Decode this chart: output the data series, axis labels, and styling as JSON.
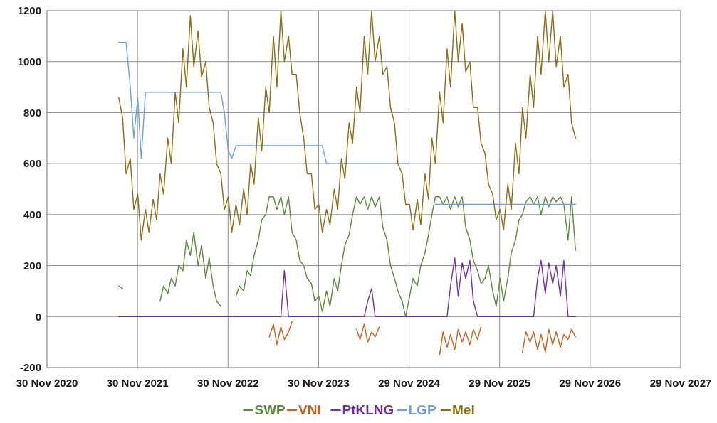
{
  "chart_data": {
    "type": "line",
    "xlim": [
      "2020-11-30",
      "2027-11-29"
    ],
    "xticks": [
      {
        "value": "2020-11-30",
        "label": "30 Nov 2020"
      },
      {
        "value": "2021-11-30",
        "label": "30 Nov 2021"
      },
      {
        "value": "2022-11-30",
        "label": "30 Nov 2022"
      },
      {
        "value": "2023-11-30",
        "label": "30 Nov 2023"
      },
      {
        "value": "2024-11-29",
        "label": "29 Nov 2024"
      },
      {
        "value": "2025-11-29",
        "label": "29 Nov 2025"
      },
      {
        "value": "2026-11-29",
        "label": "29 Nov 2026"
      },
      {
        "value": "2027-11-29",
        "label": "29 Nov 2027"
      }
    ],
    "ylim": [
      -200,
      1200
    ],
    "yticks": [
      -200,
      0,
      200,
      400,
      600,
      800,
      1000,
      1200
    ],
    "grid": true,
    "legend": "bottom",
    "line_style": "solid",
    "marker": "none",
    "x": [
      "2021-09-15",
      "2021-10-01",
      "2021-10-15",
      "2021-11-01",
      "2021-11-15",
      "2021-12-01",
      "2021-12-15",
      "2022-01-01",
      "2022-01-15",
      "2022-02-01",
      "2022-02-15",
      "2022-03-01",
      "2022-03-15",
      "2022-04-01",
      "2022-04-15",
      "2022-05-01",
      "2022-05-15",
      "2022-06-01",
      "2022-06-15",
      "2022-07-01",
      "2022-07-15",
      "2022-08-01",
      "2022-08-15",
      "2022-09-01",
      "2022-09-15",
      "2022-10-01",
      "2022-10-15",
      "2022-11-01",
      "2022-11-15",
      "2022-12-01",
      "2022-12-15",
      "2023-01-01",
      "2023-01-15",
      "2023-02-01",
      "2023-02-15",
      "2023-03-01",
      "2023-03-15",
      "2023-04-01",
      "2023-04-15",
      "2023-05-01",
      "2023-05-15",
      "2023-06-01",
      "2023-06-15",
      "2023-07-01",
      "2023-07-15",
      "2023-08-01",
      "2023-08-15",
      "2023-09-01",
      "2023-09-15",
      "2023-10-01",
      "2023-10-15",
      "2023-11-01",
      "2023-11-15",
      "2023-12-01",
      "2023-12-15",
      "2024-01-01",
      "2024-01-15",
      "2024-02-01",
      "2024-02-15",
      "2024-03-01",
      "2024-03-15",
      "2024-04-01",
      "2024-04-15",
      "2024-05-01",
      "2024-05-15",
      "2024-06-01",
      "2024-06-15",
      "2024-07-01",
      "2024-07-15",
      "2024-08-01",
      "2024-08-15",
      "2024-09-01",
      "2024-09-15",
      "2024-10-01",
      "2024-10-15",
      "2024-11-01",
      "2024-11-15",
      "2024-12-01",
      "2024-12-15",
      "2025-01-01",
      "2025-01-15",
      "2025-02-01",
      "2025-02-15",
      "2025-03-01",
      "2025-03-15",
      "2025-04-01",
      "2025-04-15",
      "2025-05-01",
      "2025-05-15",
      "2025-06-01",
      "2025-06-15",
      "2025-07-01",
      "2025-07-15",
      "2025-08-01",
      "2025-08-15",
      "2025-09-01",
      "2025-09-15",
      "2025-10-01",
      "2025-10-15",
      "2025-11-01",
      "2025-11-15",
      "2025-12-01",
      "2025-12-15",
      "2026-01-01",
      "2026-01-15",
      "2026-02-01",
      "2026-02-15",
      "2026-03-01",
      "2026-03-15",
      "2026-04-01",
      "2026-04-15",
      "2026-05-01",
      "2026-05-15",
      "2026-06-01",
      "2026-06-15",
      "2026-07-01",
      "2026-07-15",
      "2026-08-01",
      "2026-08-15",
      "2026-09-01",
      "2026-09-15",
      "2026-10-01"
    ],
    "series": [
      {
        "name": "SWP",
        "color": "#5b8a3c",
        "values": [
          120,
          110,
          null,
          null,
          null,
          null,
          null,
          null,
          null,
          null,
          null,
          60,
          120,
          90,
          150,
          120,
          200,
          180,
          300,
          240,
          330,
          200,
          280,
          150,
          230,
          120,
          60,
          40,
          null,
          null,
          null,
          80,
          120,
          100,
          180,
          160,
          240,
          300,
          380,
          400,
          470,
          470,
          420,
          470,
          400,
          470,
          330,
          300,
          220,
          200,
          150,
          130,
          60,
          80,
          20,
          100,
          40,
          150,
          100,
          200,
          280,
          320,
          400,
          470,
          440,
          470,
          420,
          470,
          430,
          470,
          350,
          300,
          200,
          150,
          100,
          60,
          0,
          80,
          150,
          120,
          200,
          250,
          320,
          400,
          470,
          470,
          440,
          470,
          420,
          470,
          430,
          470,
          350,
          300,
          220,
          180,
          130,
          150,
          200,
          100,
          40,
          150,
          60,
          150,
          250,
          300,
          380,
          400,
          450,
          470,
          440,
          470,
          400,
          470,
          430,
          470,
          450,
          470,
          440,
          300,
          470,
          260
        ]
      },
      {
        "name": "VNI",
        "color": "#c8601d",
        "values": [
          null,
          null,
          null,
          null,
          null,
          null,
          null,
          null,
          null,
          null,
          null,
          null,
          null,
          null,
          null,
          null,
          null,
          null,
          null,
          null,
          null,
          null,
          null,
          null,
          null,
          null,
          null,
          null,
          null,
          null,
          null,
          null,
          null,
          null,
          null,
          null,
          null,
          null,
          null,
          null,
          -80,
          -30,
          -110,
          -40,
          -90,
          -60,
          -20,
          null,
          null,
          null,
          null,
          null,
          null,
          null,
          null,
          null,
          null,
          null,
          null,
          null,
          null,
          null,
          null,
          -50,
          -90,
          -30,
          -100,
          -60,
          -80,
          -40,
          null,
          null,
          null,
          null,
          null,
          null,
          null,
          null,
          null,
          null,
          null,
          null,
          null,
          null,
          null,
          -150,
          -60,
          -120,
          -70,
          -130,
          -50,
          -100,
          -60,
          -110,
          -50,
          -90,
          -40,
          null,
          null,
          null,
          null,
          null,
          null,
          null,
          null,
          null,
          null,
          -140,
          -60,
          -100,
          -60,
          -130,
          -70,
          -140,
          -50,
          -110,
          -60,
          -120,
          -70,
          -90,
          -50,
          -80
        ]
      },
      {
        "name": "PtKLNG",
        "color": "#7030a0",
        "values": [
          0,
          0,
          0,
          0,
          0,
          0,
          0,
          0,
          0,
          0,
          0,
          0,
          0,
          0,
          0,
          0,
          0,
          0,
          0,
          0,
          0,
          0,
          0,
          0,
          0,
          0,
          0,
          0,
          0,
          0,
          0,
          0,
          0,
          0,
          0,
          0,
          0,
          0,
          0,
          0,
          0,
          0,
          0,
          0,
          180,
          0,
          0,
          0,
          0,
          0,
          0,
          0,
          0,
          0,
          0,
          0,
          0,
          0,
          0,
          0,
          0,
          0,
          0,
          0,
          0,
          0,
          60,
          110,
          0,
          0,
          0,
          0,
          0,
          0,
          0,
          0,
          0,
          0,
          0,
          0,
          0,
          0,
          0,
          0,
          0,
          0,
          0,
          0,
          120,
          230,
          80,
          210,
          150,
          220,
          60,
          0,
          0,
          0,
          0,
          0,
          0,
          0,
          0,
          0,
          0,
          0,
          0,
          0,
          0,
          0,
          0,
          150,
          220,
          90,
          210,
          130,
          200,
          80,
          220,
          0,
          0,
          0
        ]
      },
      {
        "name": "LGP",
        "color": "#6fa0dc",
        "values": [
          1075,
          1075,
          1075,
          900,
          700,
          860,
          620,
          880,
          880,
          880,
          880,
          880,
          880,
          880,
          880,
          880,
          880,
          880,
          880,
          880,
          880,
          880,
          880,
          880,
          880,
          880,
          880,
          880,
          800,
          650,
          620,
          670,
          670,
          670,
          670,
          670,
          670,
          670,
          670,
          670,
          670,
          670,
          670,
          670,
          670,
          670,
          670,
          670,
          670,
          670,
          670,
          670,
          670,
          670,
          670,
          600,
          600,
          600,
          600,
          600,
          600,
          600,
          600,
          600,
          600,
          600,
          600,
          600,
          600,
          600,
          600,
          600,
          600,
          600,
          600,
          600,
          600,
          600,
          null,
          null,
          null,
          null,
          null,
          null,
          440,
          440,
          440,
          440,
          440,
          440,
          440,
          440,
          440,
          440,
          440,
          440,
          440,
          440,
          440,
          440,
          440,
          440,
          440,
          440,
          440,
          440,
          440,
          440,
          440,
          440,
          440,
          440,
          440,
          440,
          440,
          440,
          440,
          440,
          440,
          440,
          440,
          440
        ]
      },
      {
        "name": "Mel",
        "color": "#8c6d12",
        "values": [
          860,
          780,
          560,
          620,
          420,
          480,
          300,
          420,
          330,
          460,
          380,
          560,
          480,
          700,
          600,
          880,
          760,
          1050,
          900,
          1180,
          980,
          1120,
          940,
          1000,
          820,
          760,
          600,
          560,
          420,
          470,
          330,
          440,
          360,
          500,
          400,
          600,
          520,
          780,
          650,
          900,
          800,
          1100,
          900,
          1200,
          1000,
          1100,
          950,
          950,
          800,
          700,
          560,
          560,
          420,
          440,
          330,
          420,
          360,
          500,
          420,
          620,
          540,
          760,
          680,
          900,
          800,
          1100,
          950,
          1200,
          1000,
          1100,
          950,
          980,
          820,
          760,
          600,
          560,
          440,
          440,
          340,
          460,
          360,
          560,
          460,
          700,
          600,
          880,
          760,
          1050,
          900,
          1200,
          1000,
          1150,
          960,
          1000,
          820,
          820,
          680,
          640,
          520,
          480,
          380,
          420,
          340,
          520,
          420,
          680,
          560,
          820,
          700,
          950,
          820,
          1100,
          950,
          1200,
          1000,
          1200,
          980,
          1100,
          900,
          950,
          760,
          700
        ]
      }
    ]
  }
}
